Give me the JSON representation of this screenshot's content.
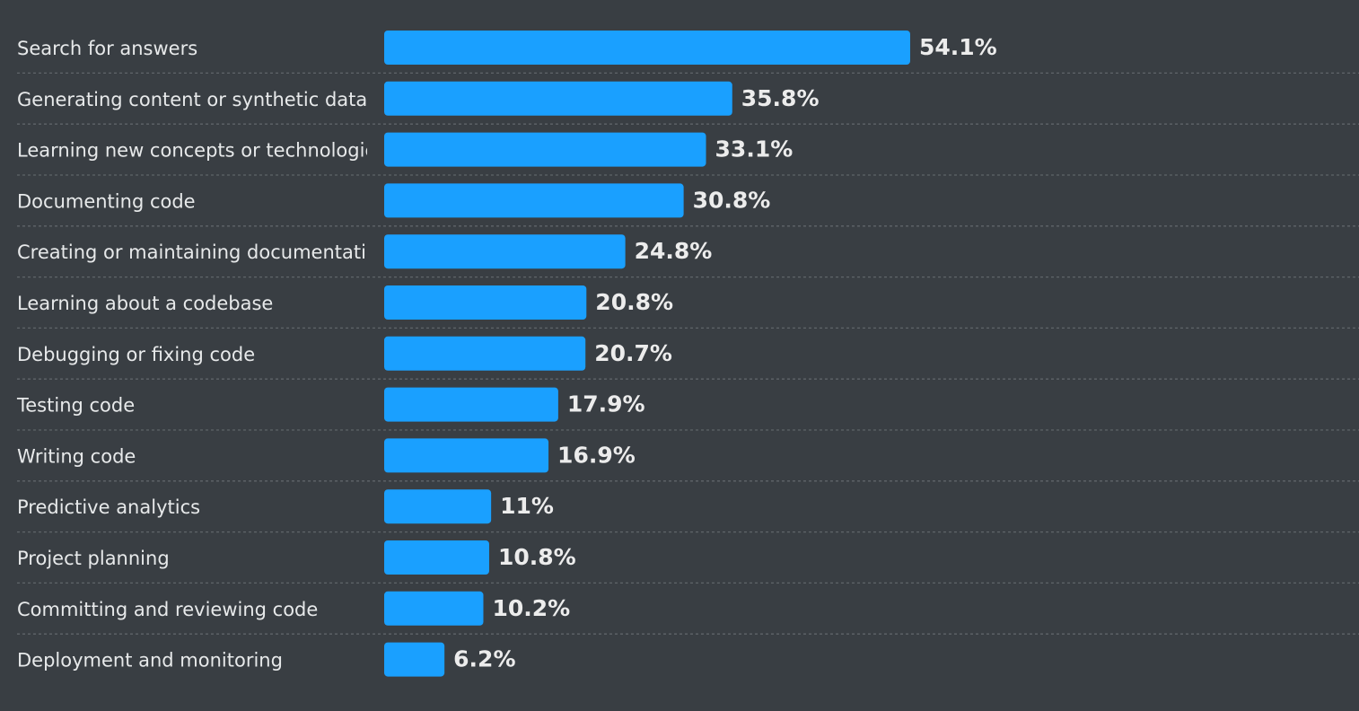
{
  "chart_data": {
    "type": "bar",
    "orientation": "horizontal",
    "categories": [
      "Search for answers",
      "Generating content or synthetic data",
      "Learning new concepts or technologies",
      "Documenting code",
      "Creating or maintaining documentation",
      "Learning about a codebase",
      "Debugging or fixing code",
      "Testing code",
      "Writing code",
      "Predictive analytics",
      "Project planning",
      "Committing and reviewing code",
      "Deployment and monitoring"
    ],
    "values": [
      54.1,
      35.8,
      33.1,
      30.8,
      24.8,
      20.8,
      20.7,
      17.9,
      16.9,
      11,
      10.8,
      10.2,
      6.2
    ],
    "value_labels": [
      "54.1%",
      "35.8%",
      "33.1%",
      "30.8%",
      "24.8%",
      "20.8%",
      "20.7%",
      "17.9%",
      "16.9%",
      "11%",
      "10.8%",
      "10.2%",
      "6.2%"
    ],
    "unit": "%",
    "grid": "dashed row separators",
    "legend": "none",
    "colors": {
      "background": "#393e43",
      "bar": "#1aa0ff",
      "text": "#e7e9ea",
      "separator": "#5f6469"
    }
  }
}
